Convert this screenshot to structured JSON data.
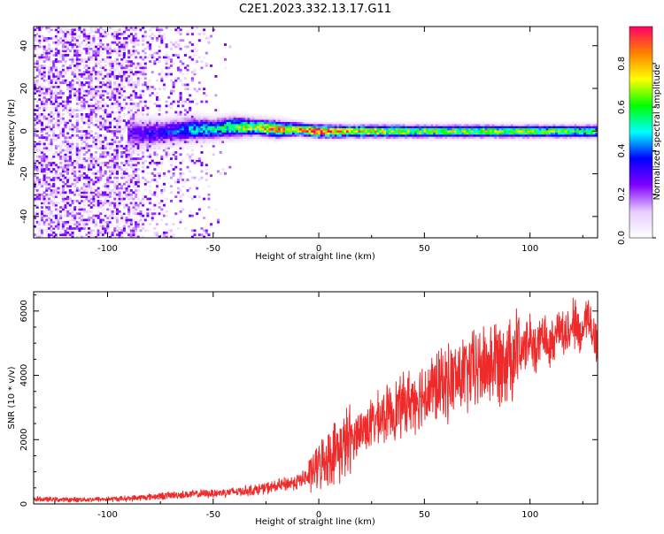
{
  "figure": {
    "title": "C2E1.2023.332.13.17.G11"
  },
  "chart_data": [
    {
      "type": "heatmap",
      "xlabel": "Height of straight line (km)",
      "ylabel": "Frequency (Hz)",
      "xlim": [
        -135,
        132
      ],
      "ylim": [
        -50,
        49
      ],
      "x_ticks": [
        "-100",
        "-50",
        "0",
        "50",
        "100"
      ],
      "x_tick_values": [
        -100,
        -50,
        0,
        50,
        100
      ],
      "y_ticks": [
        "-40",
        "-20",
        "0",
        "20",
        "40"
      ],
      "y_tick_values": [
        -40,
        -20,
        0,
        20,
        40
      ],
      "colorbar": {
        "label": "Normalized spectral amplitude",
        "range": [
          0.0,
          0.97
        ],
        "ticks": [
          "0.0",
          "0.2",
          "0.4",
          "0.6",
          "0.8"
        ],
        "tick_values": [
          0.0,
          0.2,
          0.4,
          0.6,
          0.8
        ],
        "colormap": [
          "#ffffff",
          "#e6ccff",
          "#8000ff",
          "#0000ff",
          "#00ffff",
          "#00ff00",
          "#ffff00",
          "#ff8000",
          "#ff0066"
        ]
      },
      "description_features": {
        "noise_region_x": [
          -135,
          -85
        ],
        "signal_band_start_x": -90,
        "peak_x": 0,
        "band_center_frequency": 0
      },
      "x": [
        -90,
        -80,
        -70,
        -60,
        -50,
        -40,
        -30,
        -20,
        -10,
        0,
        10,
        20,
        30,
        50,
        70,
        90,
        110,
        132
      ],
      "band_center": [
        -1,
        -1,
        0,
        1,
        1,
        2,
        2,
        1,
        1,
        0,
        0,
        0,
        0,
        0,
        0,
        0,
        0,
        0
      ],
      "band_halfwidth": [
        8,
        7,
        6,
        6,
        5,
        5,
        4,
        4,
        3,
        3,
        3,
        3,
        3,
        3,
        3,
        3,
        3,
        3
      ],
      "peak_amplitude": [
        0.25,
        0.3,
        0.35,
        0.45,
        0.5,
        0.6,
        0.7,
        0.8,
        0.8,
        0.95,
        0.8,
        0.75,
        0.7,
        0.65,
        0.65,
        0.65,
        0.62,
        0.6
      ]
    },
    {
      "type": "line",
      "xlabel": "Height of straight line (km)",
      "ylabel": "SNR (10 * v/v)",
      "xlim": [
        -135,
        132
      ],
      "ylim": [
        0,
        6600
      ],
      "x_ticks": [
        "-100",
        "-50",
        "0",
        "50",
        "100"
      ],
      "x_tick_values": [
        -100,
        -50,
        0,
        50,
        100
      ],
      "y_ticks": [
        "0",
        "2000",
        "4000",
        "6000"
      ],
      "y_tick_values": [
        0,
        2000,
        4000,
        6000
      ],
      "color": "#ee2a2a",
      "series": [
        {
          "x": [
            -135,
            -120,
            -100,
            -90,
            -80,
            -70,
            -60,
            -50,
            -40,
            -30,
            -20,
            -10,
            -5,
            0,
            5,
            10,
            20,
            30,
            40,
            50,
            60,
            70,
            80,
            90,
            100,
            110,
            115,
            120,
            125,
            130,
            132
          ],
          "values": [
            150,
            130,
            150,
            170,
            220,
            270,
            300,
            330,
            380,
            440,
            550,
            700,
            850,
            1200,
            1500,
            1700,
            2300,
            2700,
            3100,
            3450,
            3750,
            4050,
            4350,
            4650,
            4950,
            5200,
            5350,
            5450,
            5500,
            5550,
            5000
          ]
        }
      ]
    }
  ]
}
